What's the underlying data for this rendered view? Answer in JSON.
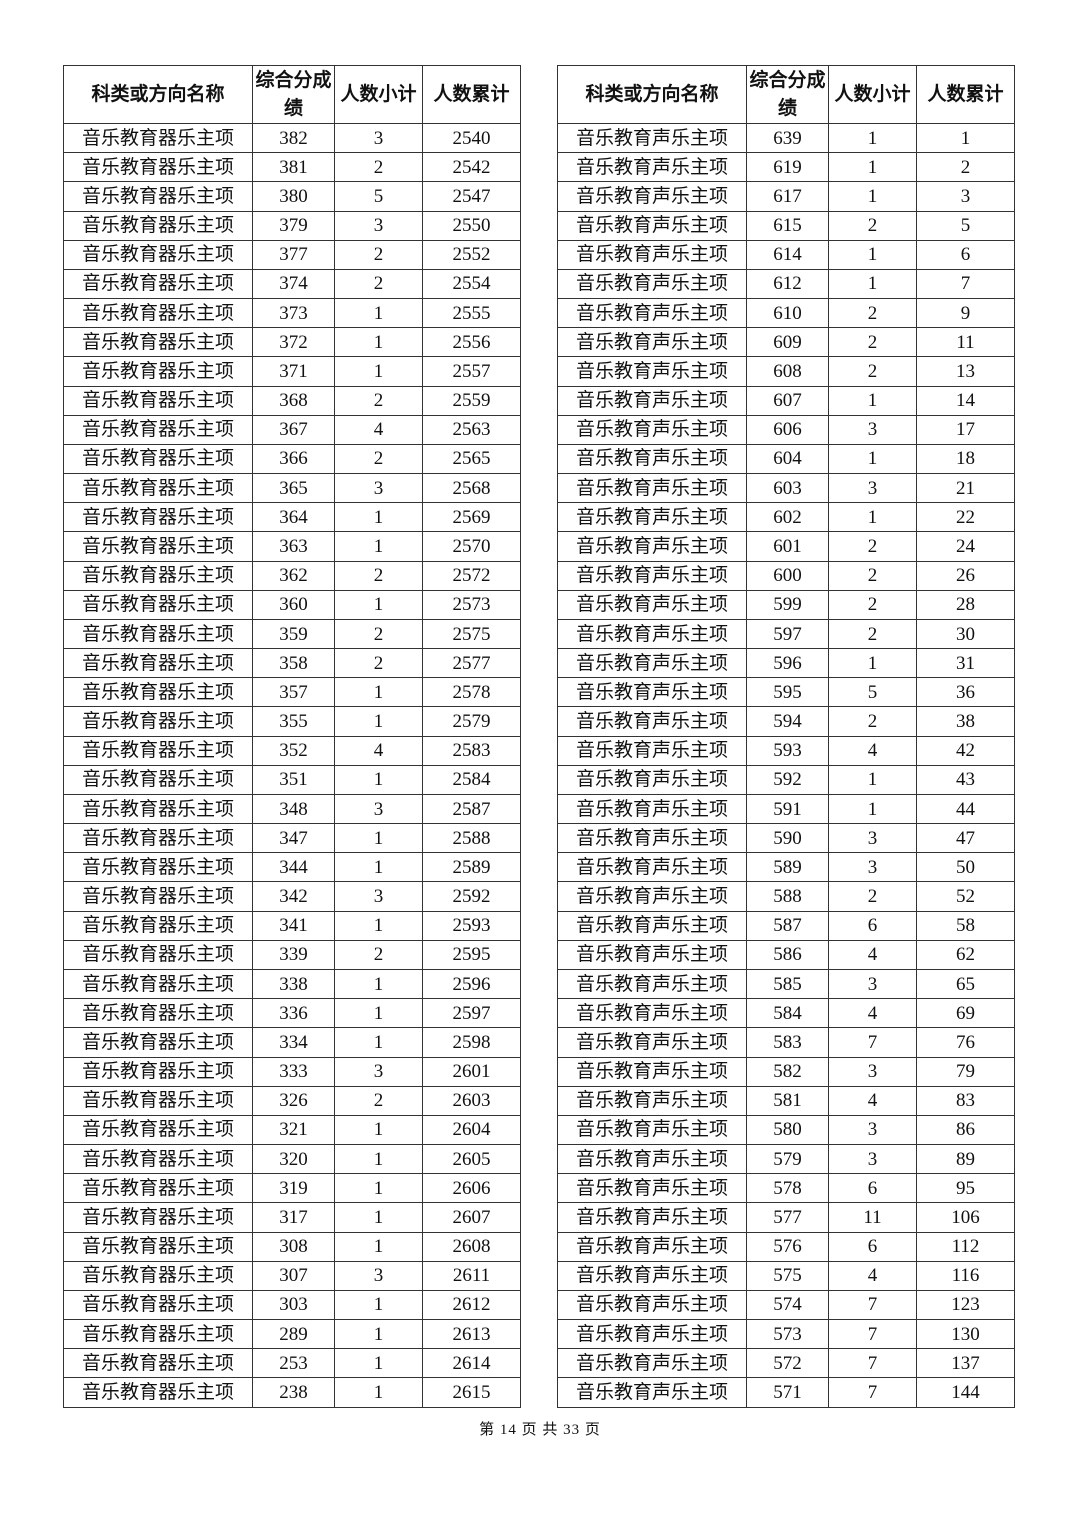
{
  "headers": {
    "name": "科类或方向名称",
    "score": "综合分成绩",
    "count": "人数小计",
    "cumulative": "人数累计"
  },
  "left_table": {
    "rows": [
      [
        "音乐教育器乐主项",
        "382",
        "3",
        "2540"
      ],
      [
        "音乐教育器乐主项",
        "381",
        "2",
        "2542"
      ],
      [
        "音乐教育器乐主项",
        "380",
        "5",
        "2547"
      ],
      [
        "音乐教育器乐主项",
        "379",
        "3",
        "2550"
      ],
      [
        "音乐教育器乐主项",
        "377",
        "2",
        "2552"
      ],
      [
        "音乐教育器乐主项",
        "374",
        "2",
        "2554"
      ],
      [
        "音乐教育器乐主项",
        "373",
        "1",
        "2555"
      ],
      [
        "音乐教育器乐主项",
        "372",
        "1",
        "2556"
      ],
      [
        "音乐教育器乐主项",
        "371",
        "1",
        "2557"
      ],
      [
        "音乐教育器乐主项",
        "368",
        "2",
        "2559"
      ],
      [
        "音乐教育器乐主项",
        "367",
        "4",
        "2563"
      ],
      [
        "音乐教育器乐主项",
        "366",
        "2",
        "2565"
      ],
      [
        "音乐教育器乐主项",
        "365",
        "3",
        "2568"
      ],
      [
        "音乐教育器乐主项",
        "364",
        "1",
        "2569"
      ],
      [
        "音乐教育器乐主项",
        "363",
        "1",
        "2570"
      ],
      [
        "音乐教育器乐主项",
        "362",
        "2",
        "2572"
      ],
      [
        "音乐教育器乐主项",
        "360",
        "1",
        "2573"
      ],
      [
        "音乐教育器乐主项",
        "359",
        "2",
        "2575"
      ],
      [
        "音乐教育器乐主项",
        "358",
        "2",
        "2577"
      ],
      [
        "音乐教育器乐主项",
        "357",
        "1",
        "2578"
      ],
      [
        "音乐教育器乐主项",
        "355",
        "1",
        "2579"
      ],
      [
        "音乐教育器乐主项",
        "352",
        "4",
        "2583"
      ],
      [
        "音乐教育器乐主项",
        "351",
        "1",
        "2584"
      ],
      [
        "音乐教育器乐主项",
        "348",
        "3",
        "2587"
      ],
      [
        "音乐教育器乐主项",
        "347",
        "1",
        "2588"
      ],
      [
        "音乐教育器乐主项",
        "344",
        "1",
        "2589"
      ],
      [
        "音乐教育器乐主项",
        "342",
        "3",
        "2592"
      ],
      [
        "音乐教育器乐主项",
        "341",
        "1",
        "2593"
      ],
      [
        "音乐教育器乐主项",
        "339",
        "2",
        "2595"
      ],
      [
        "音乐教育器乐主项",
        "338",
        "1",
        "2596"
      ],
      [
        "音乐教育器乐主项",
        "336",
        "1",
        "2597"
      ],
      [
        "音乐教育器乐主项",
        "334",
        "1",
        "2598"
      ],
      [
        "音乐教育器乐主项",
        "333",
        "3",
        "2601"
      ],
      [
        "音乐教育器乐主项",
        "326",
        "2",
        "2603"
      ],
      [
        "音乐教育器乐主项",
        "321",
        "1",
        "2604"
      ],
      [
        "音乐教育器乐主项",
        "320",
        "1",
        "2605"
      ],
      [
        "音乐教育器乐主项",
        "319",
        "1",
        "2606"
      ],
      [
        "音乐教育器乐主项",
        "317",
        "1",
        "2607"
      ],
      [
        "音乐教育器乐主项",
        "308",
        "1",
        "2608"
      ],
      [
        "音乐教育器乐主项",
        "307",
        "3",
        "2611"
      ],
      [
        "音乐教育器乐主项",
        "303",
        "1",
        "2612"
      ],
      [
        "音乐教育器乐主项",
        "289",
        "1",
        "2613"
      ],
      [
        "音乐教育器乐主项",
        "253",
        "1",
        "2614"
      ],
      [
        "音乐教育器乐主项",
        "238",
        "1",
        "2615"
      ]
    ]
  },
  "right_table": {
    "rows": [
      [
        "音乐教育声乐主项",
        "639",
        "1",
        "1"
      ],
      [
        "音乐教育声乐主项",
        "619",
        "1",
        "2"
      ],
      [
        "音乐教育声乐主项",
        "617",
        "1",
        "3"
      ],
      [
        "音乐教育声乐主项",
        "615",
        "2",
        "5"
      ],
      [
        "音乐教育声乐主项",
        "614",
        "1",
        "6"
      ],
      [
        "音乐教育声乐主项",
        "612",
        "1",
        "7"
      ],
      [
        "音乐教育声乐主项",
        "610",
        "2",
        "9"
      ],
      [
        "音乐教育声乐主项",
        "609",
        "2",
        "11"
      ],
      [
        "音乐教育声乐主项",
        "608",
        "2",
        "13"
      ],
      [
        "音乐教育声乐主项",
        "607",
        "1",
        "14"
      ],
      [
        "音乐教育声乐主项",
        "606",
        "3",
        "17"
      ],
      [
        "音乐教育声乐主项",
        "604",
        "1",
        "18"
      ],
      [
        "音乐教育声乐主项",
        "603",
        "3",
        "21"
      ],
      [
        "音乐教育声乐主项",
        "602",
        "1",
        "22"
      ],
      [
        "音乐教育声乐主项",
        "601",
        "2",
        "24"
      ],
      [
        "音乐教育声乐主项",
        "600",
        "2",
        "26"
      ],
      [
        "音乐教育声乐主项",
        "599",
        "2",
        "28"
      ],
      [
        "音乐教育声乐主项",
        "597",
        "2",
        "30"
      ],
      [
        "音乐教育声乐主项",
        "596",
        "1",
        "31"
      ],
      [
        "音乐教育声乐主项",
        "595",
        "5",
        "36"
      ],
      [
        "音乐教育声乐主项",
        "594",
        "2",
        "38"
      ],
      [
        "音乐教育声乐主项",
        "593",
        "4",
        "42"
      ],
      [
        "音乐教育声乐主项",
        "592",
        "1",
        "43"
      ],
      [
        "音乐教育声乐主项",
        "591",
        "1",
        "44"
      ],
      [
        "音乐教育声乐主项",
        "590",
        "3",
        "47"
      ],
      [
        "音乐教育声乐主项",
        "589",
        "3",
        "50"
      ],
      [
        "音乐教育声乐主项",
        "588",
        "2",
        "52"
      ],
      [
        "音乐教育声乐主项",
        "587",
        "6",
        "58"
      ],
      [
        "音乐教育声乐主项",
        "586",
        "4",
        "62"
      ],
      [
        "音乐教育声乐主项",
        "585",
        "3",
        "65"
      ],
      [
        "音乐教育声乐主项",
        "584",
        "4",
        "69"
      ],
      [
        "音乐教育声乐主项",
        "583",
        "7",
        "76"
      ],
      [
        "音乐教育声乐主项",
        "582",
        "3",
        "79"
      ],
      [
        "音乐教育声乐主项",
        "581",
        "4",
        "83"
      ],
      [
        "音乐教育声乐主项",
        "580",
        "3",
        "86"
      ],
      [
        "音乐教育声乐主项",
        "579",
        "3",
        "89"
      ],
      [
        "音乐教育声乐主项",
        "578",
        "6",
        "95"
      ],
      [
        "音乐教育声乐主项",
        "577",
        "11",
        "106"
      ],
      [
        "音乐教育声乐主项",
        "576",
        "6",
        "112"
      ],
      [
        "音乐教育声乐主项",
        "575",
        "4",
        "116"
      ],
      [
        "音乐教育声乐主项",
        "574",
        "7",
        "123"
      ],
      [
        "音乐教育声乐主项",
        "573",
        "7",
        "130"
      ],
      [
        "音乐教育声乐主项",
        "572",
        "7",
        "137"
      ],
      [
        "音乐教育声乐主项",
        "571",
        "7",
        "144"
      ]
    ]
  },
  "footer": {
    "page_text": "第 14 页 共 33 页"
  }
}
